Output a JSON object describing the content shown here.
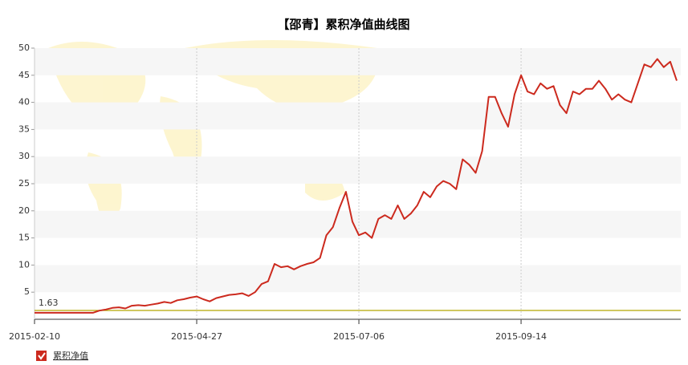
{
  "chart_data": {
    "type": "line",
    "title": "【邵青】累积净值曲线图",
    "categories": [
      "2015-02-10",
      null,
      null,
      null,
      null,
      null,
      null,
      null,
      null,
      null,
      null,
      null,
      null,
      null,
      null,
      null,
      null,
      null,
      null,
      null,
      null,
      null,
      null,
      null,
      null,
      "2015-04-27",
      null,
      null,
      null,
      null,
      null,
      null,
      null,
      null,
      null,
      null,
      null,
      null,
      null,
      null,
      null,
      null,
      null,
      null,
      null,
      null,
      null,
      null,
      null,
      null,
      "2015-07-06",
      null,
      null,
      null,
      null,
      null,
      null,
      null,
      null,
      null,
      null,
      null,
      null,
      null,
      null,
      null,
      null,
      null,
      null,
      null,
      null,
      null,
      null,
      null,
      null,
      "2015-09-14",
      null,
      null,
      null,
      null,
      null,
      null,
      null,
      null,
      null,
      null,
      null,
      null,
      null,
      null,
      null,
      null,
      null,
      null,
      null,
      null,
      null,
      null,
      null,
      null
    ],
    "series": [
      {
        "name": "累积净值",
        "color": "#cc2a1e",
        "values": [
          1.2,
          1.2,
          1.2,
          1.2,
          1.2,
          1.2,
          1.2,
          1.2,
          1.2,
          1.2,
          1.6,
          1.8,
          2.1,
          2.2,
          2.0,
          2.5,
          2.6,
          2.5,
          2.7,
          2.9,
          3.2,
          3.0,
          3.5,
          3.7,
          4.0,
          4.2,
          3.7,
          3.3,
          3.9,
          4.2,
          4.5,
          4.6,
          4.8,
          4.3,
          5.0,
          6.5,
          7.0,
          10.2,
          9.6,
          9.8,
          9.2,
          9.8,
          10.2,
          10.5,
          11.3,
          15.5,
          17.0,
          20.5,
          23.5,
          18.0,
          15.5,
          16.0,
          15.0,
          18.5,
          19.2,
          18.5,
          21.0,
          18.5,
          19.5,
          21.0,
          23.5,
          22.5,
          24.5,
          25.5,
          25.0,
          24.0,
          29.5,
          28.5,
          27.0,
          31.0,
          41.0,
          41.0,
          38.0,
          35.5,
          41.5,
          45.0,
          42.0,
          41.5,
          43.5,
          42.5,
          43.0,
          39.5,
          38.0,
          42.0,
          41.5,
          42.5,
          42.5,
          44.0,
          42.5,
          40.5,
          41.5,
          40.5,
          40.0,
          43.5,
          47.0,
          46.5,
          48.0,
          46.5,
          47.5,
          44.0
        ]
      }
    ],
    "reference_line": {
      "value": 1.63,
      "color": "#b5a800"
    },
    "ylim": [
      0,
      50
    ],
    "yticks": [
      5,
      10,
      15,
      20,
      25,
      30,
      35,
      40,
      45,
      50
    ],
    "grid": true
  }
}
